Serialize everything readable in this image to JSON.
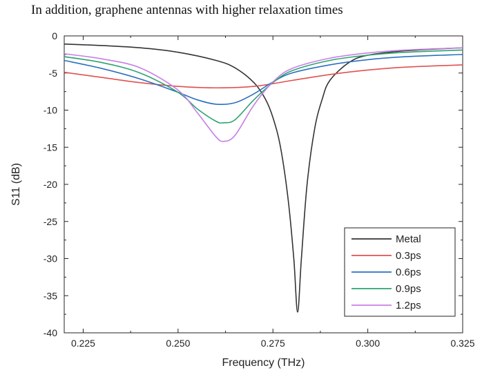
{
  "caption": "In addition, graphene antennas with higher relaxation times",
  "chart_data": {
    "type": "line",
    "title": "",
    "xlabel": "Frequency (THz)",
    "ylabel": "S11 (dB)",
    "xlim": [
      0.22,
      0.325
    ],
    "ylim": [
      -40,
      0
    ],
    "x_ticks": [
      "0.225",
      "0.250",
      "0.275",
      "0.300",
      "0.325"
    ],
    "x_tick_values": [
      0.225,
      0.25,
      0.275,
      0.3,
      0.325
    ],
    "y_ticks": [
      "0",
      "-5",
      "-10",
      "-15",
      "-20",
      "-25",
      "-30",
      "-35",
      "-40"
    ],
    "y_tick_values": [
      0,
      -5,
      -10,
      -15,
      -20,
      -25,
      -30,
      -35,
      -40
    ],
    "legend_position": "bottom-right",
    "grid": false,
    "series": [
      {
        "name": "Metal",
        "color": "#333333",
        "points": [
          [
            0.22,
            -1.1
          ],
          [
            0.23,
            -1.3
          ],
          [
            0.24,
            -1.6
          ],
          [
            0.25,
            -2.2
          ],
          [
            0.26,
            -3.3
          ],
          [
            0.265,
            -4.3
          ],
          [
            0.27,
            -6.3
          ],
          [
            0.273,
            -8.5
          ],
          [
            0.275,
            -11.0
          ],
          [
            0.277,
            -15.0
          ],
          [
            0.279,
            -22.0
          ],
          [
            0.2805,
            -30.0
          ],
          [
            0.2815,
            -37.2
          ],
          [
            0.2825,
            -30.0
          ],
          [
            0.284,
            -20.0
          ],
          [
            0.286,
            -12.5
          ],
          [
            0.288,
            -8.5
          ],
          [
            0.29,
            -6.0
          ],
          [
            0.295,
            -3.6
          ],
          [
            0.3,
            -2.6
          ],
          [
            0.31,
            -2.0
          ],
          [
            0.325,
            -1.6
          ]
        ]
      },
      {
        "name": "0.3ps",
        "color": "#e05050",
        "points": [
          [
            0.22,
            -4.9
          ],
          [
            0.23,
            -5.6
          ],
          [
            0.24,
            -6.3
          ],
          [
            0.25,
            -6.8
          ],
          [
            0.26,
            -7.0
          ],
          [
            0.27,
            -6.8
          ],
          [
            0.28,
            -6.0
          ],
          [
            0.29,
            -5.2
          ],
          [
            0.3,
            -4.6
          ],
          [
            0.31,
            -4.2
          ],
          [
            0.325,
            -3.9
          ]
        ]
      },
      {
        "name": "0.6ps",
        "color": "#2a6fbf",
        "points": [
          [
            0.22,
            -3.3
          ],
          [
            0.23,
            -4.4
          ],
          [
            0.24,
            -5.8
          ],
          [
            0.25,
            -7.6
          ],
          [
            0.255,
            -8.6
          ],
          [
            0.26,
            -9.2
          ],
          [
            0.265,
            -9.0
          ],
          [
            0.27,
            -7.8
          ],
          [
            0.275,
            -6.2
          ],
          [
            0.28,
            -5.0
          ],
          [
            0.29,
            -3.9
          ],
          [
            0.3,
            -3.2
          ],
          [
            0.31,
            -2.8
          ],
          [
            0.325,
            -2.5
          ]
        ]
      },
      {
        "name": "0.9ps",
        "color": "#2aa36e",
        "points": [
          [
            0.22,
            -2.8
          ],
          [
            0.23,
            -3.6
          ],
          [
            0.24,
            -5.0
          ],
          [
            0.25,
            -7.6
          ],
          [
            0.255,
            -9.8
          ],
          [
            0.26,
            -11.5
          ],
          [
            0.262,
            -11.7
          ],
          [
            0.265,
            -11.3
          ],
          [
            0.27,
            -8.6
          ],
          [
            0.275,
            -6.3
          ],
          [
            0.28,
            -4.7
          ],
          [
            0.29,
            -3.3
          ],
          [
            0.3,
            -2.6
          ],
          [
            0.31,
            -2.2
          ],
          [
            0.325,
            -1.9
          ]
        ]
      },
      {
        "name": "1.2ps",
        "color": "#c77ee6",
        "points": [
          [
            0.22,
            -2.4
          ],
          [
            0.23,
            -3.1
          ],
          [
            0.24,
            -4.3
          ],
          [
            0.25,
            -7.3
          ],
          [
            0.255,
            -10.3
          ],
          [
            0.26,
            -13.6
          ],
          [
            0.262,
            -14.2
          ],
          [
            0.265,
            -13.4
          ],
          [
            0.27,
            -9.3
          ],
          [
            0.275,
            -6.2
          ],
          [
            0.28,
            -4.4
          ],
          [
            0.29,
            -3.0
          ],
          [
            0.3,
            -2.3
          ],
          [
            0.31,
            -1.9
          ],
          [
            0.325,
            -1.6
          ]
        ]
      }
    ]
  }
}
